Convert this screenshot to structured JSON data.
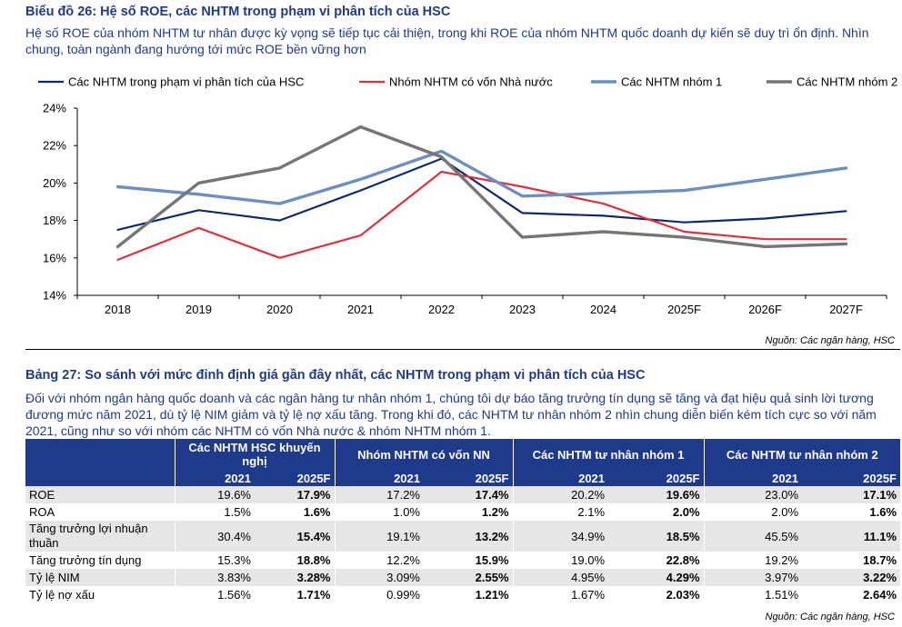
{
  "section1": {
    "title": "Biểu đồ 26: Hệ số ROE, các NHTM trong phạm vi phân tích của HSC",
    "description": "Hệ số ROE của nhóm NHTM tư nhân được kỳ vọng sẽ tiếp tục cải thiện, trong khi ROE của nhóm NHTM quốc doanh dự kiến sẽ duy trì ổn định. Nhìn chung, toàn ngành đang hướng tới mức ROE bền vững hơn",
    "source": "Nguồn: Các ngân hàng, HSC"
  },
  "chart_data": {
    "type": "line",
    "categories": [
      "2018",
      "2019",
      "2020",
      "2021",
      "2022",
      "2023",
      "2024",
      "2025F",
      "2026F",
      "2027F"
    ],
    "ylim": [
      14,
      24
    ],
    "yticks": [
      14,
      16,
      18,
      20,
      22,
      24
    ],
    "ytick_labels": [
      "14%",
      "16%",
      "18%",
      "20%",
      "22%",
      "24%"
    ],
    "legend_position": "top",
    "grid": false,
    "series": [
      {
        "name": "Các NHTM trong phạm vi phân tích của HSC",
        "color": "#0d2a6e",
        "width": 2.2,
        "values": [
          17.5,
          18.55,
          18.0,
          19.6,
          21.3,
          18.4,
          18.25,
          17.9,
          18.1,
          18.5
        ]
      },
      {
        "name": "Nhóm NHTM có vốn Nhà nước",
        "color": "#e0303b",
        "width": 2.2,
        "values": [
          15.9,
          17.6,
          16.0,
          17.2,
          20.6,
          19.8,
          18.9,
          17.4,
          17.0,
          17.0
        ]
      },
      {
        "name": "Các NHTM nhóm 1",
        "color": "#6b8fc0",
        "width": 3.4,
        "values": [
          19.8,
          19.4,
          18.9,
          20.2,
          21.7,
          19.3,
          19.45,
          19.6,
          20.2,
          20.8
        ]
      },
      {
        "name": "Các NHTM nhóm 2",
        "color": "#757575",
        "width": 3.4,
        "values": [
          16.6,
          20.0,
          20.8,
          23.0,
          21.4,
          17.1,
          17.4,
          17.1,
          16.6,
          16.75
        ]
      }
    ]
  },
  "section2": {
    "title": "Bảng 27: So sánh với mức đỉnh định giá gần đây nhất, các NHTM trong phạm vi phân tích của HSC",
    "description": "Đối với nhóm ngân hàng quốc doanh và các ngân hàng tư nhân nhóm 1, chúng tôi dự báo tăng trưởng tín dụng sẽ tăng và đạt hiệu quả sinh lời tương đương mức năm 2021, dù tỷ lệ NIM giảm và tỷ lệ nợ xấu tăng. Trong khi đó, các NHTM tư nhân nhóm 2 nhìn chung diễn biến kém tích cực so với năm 2021, cũng như so với nhóm các NHTM có vốn Nhà nước & nhóm NHTM nhóm 1.",
    "source": "Nguồn: Các ngân hàng, HSC"
  },
  "table": {
    "groups": [
      "Các NHTM HSC khuyến nghị",
      "Nhóm NHTM có vốn NN",
      "Các NHTM tư nhân nhóm 1",
      "Các NHTM tư nhân nhóm 2"
    ],
    "subheaders": [
      "2021",
      "2025F",
      "2021",
      "2025F",
      "2021",
      "2025F",
      "2021",
      "2025F"
    ],
    "rows": [
      {
        "label": "ROE",
        "values": [
          "19.6%",
          "17.9%",
          "17.2%",
          "17.4%",
          "20.2%",
          "19.6%",
          "23.0%",
          "17.1%"
        ]
      },
      {
        "label": "ROA",
        "values": [
          "1.5%",
          "1.6%",
          "1.0%",
          "1.2%",
          "2.1%",
          "2.0%",
          "2.0%",
          "1.6%"
        ]
      },
      {
        "label": "Tăng trưởng lợi nhuận thuần",
        "values": [
          "30.4%",
          "15.4%",
          "19.1%",
          "13.2%",
          "34.9%",
          "18.5%",
          "45.5%",
          "11.1%"
        ]
      },
      {
        "label": "Tăng trưởng tín dụng",
        "values": [
          "15.3%",
          "18.8%",
          "12.2%",
          "15.9%",
          "19.0%",
          "22.8%",
          "19.2%",
          "18.7%"
        ]
      },
      {
        "label": "Tỷ lệ NIM",
        "values": [
          "3.83%",
          "3.28%",
          "3.09%",
          "2.55%",
          "4.95%",
          "4.29%",
          "3.97%",
          "3.22%"
        ]
      },
      {
        "label": "Tỷ lệ nợ xấu",
        "values": [
          "1.56%",
          "1.71%",
          "0.99%",
          "1.21%",
          "1.67%",
          "2.03%",
          "1.51%",
          "2.64%"
        ]
      }
    ]
  }
}
